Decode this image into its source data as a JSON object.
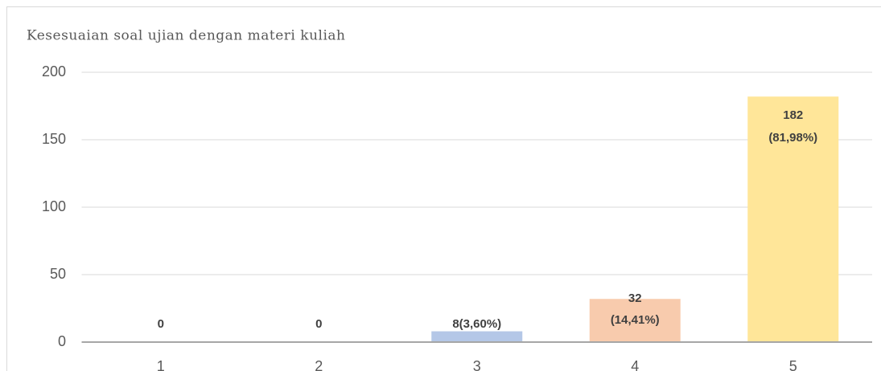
{
  "chart_data": {
    "type": "bar",
    "title": "Kesesuaian soal ujian dengan materi kuliah",
    "categories": [
      "1",
      "2",
      "3",
      "4",
      "5"
    ],
    "values": [
      0,
      0,
      8,
      32,
      182
    ],
    "value_labels": [
      [
        "0"
      ],
      [
        "0"
      ],
      [
        "8(3,60%)"
      ],
      [
        "32",
        "(14,41%)"
      ],
      [
        "182",
        "(81,98%)"
      ]
    ],
    "colors": [
      "#b4c7e7",
      "#b4c7e7",
      "#b4c7e7",
      "#f8cbad",
      "#ffe699"
    ],
    "ylim": [
      0,
      200
    ],
    "yticks": [
      0,
      50,
      100,
      150,
      200
    ],
    "grid": true
  }
}
